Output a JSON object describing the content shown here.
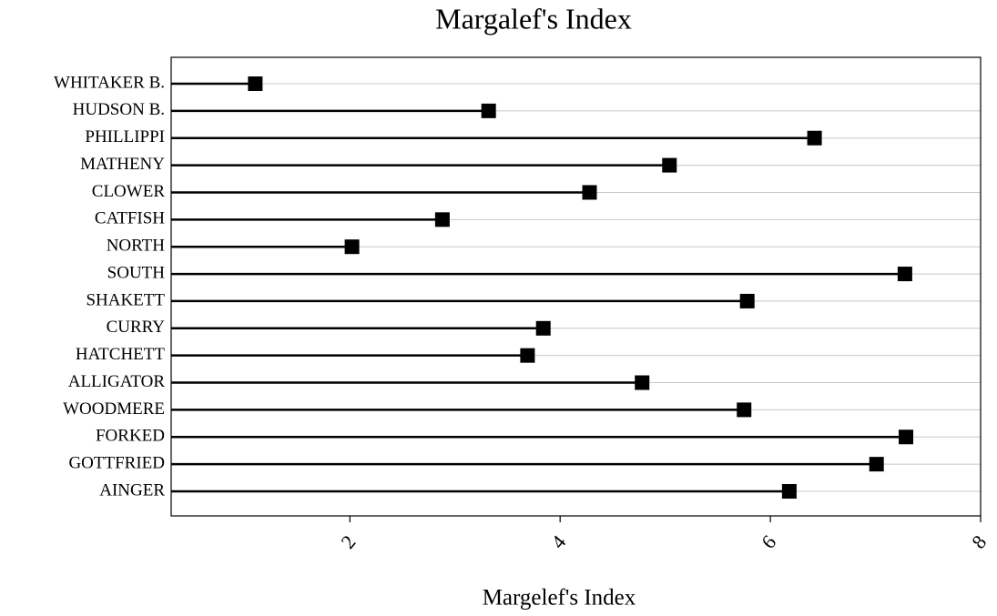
{
  "chart_data": {
    "type": "lollipop",
    "title": "Margalef's Index",
    "x_label": "Margelef's Index",
    "categories": [
      "WHITAKER B.",
      "HUDSON B.",
      "PHILLIPPI",
      "MATHENY",
      "CLOWER",
      "CATFISH",
      "NORTH",
      "SOUTH",
      "SHAKETT",
      "CURRY",
      "HATCHETT",
      "ALLIGATOR",
      "WOODMERE",
      "FORKED",
      "GOTTFRIED",
      "AINGER"
    ],
    "values": [
      1.1,
      3.32,
      6.42,
      5.04,
      4.28,
      2.88,
      2.02,
      7.28,
      5.78,
      3.84,
      3.69,
      4.78,
      5.75,
      7.29,
      7.01,
      6.18
    ],
    "color": "#000000",
    "xlim": [
      0.3,
      8
    ],
    "xticks": [
      2,
      4,
      6,
      8
    ],
    "grid": true
  }
}
